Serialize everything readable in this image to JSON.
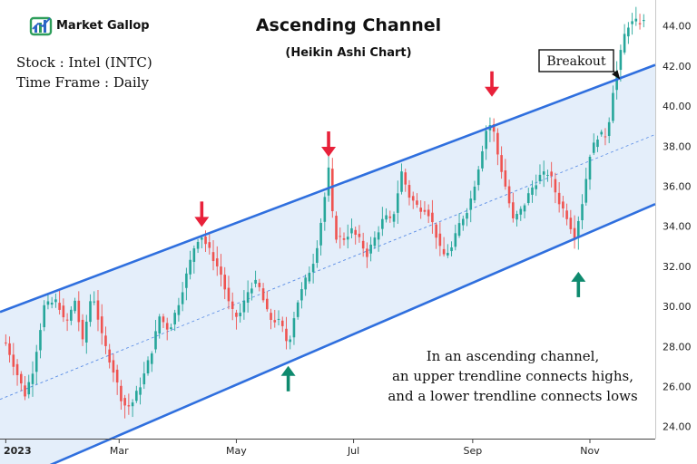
{
  "logo": {
    "text": "Market Gallop",
    "colors": {
      "green": "#2e9e5b",
      "blue": "#2b64c5",
      "text": "#1a2a5a"
    }
  },
  "header": {
    "title": "Ascending Channel",
    "subtitle": "(Heikin Ashi Chart)"
  },
  "info": {
    "stock": "Stock : Intel (INTC)",
    "timeframe": "Time Frame : Daily"
  },
  "annotations": {
    "breakout_label": "Breakout",
    "description": [
      "In an ascending channel,",
      "an upper trendline connects highs,",
      "and a lower trendline connects lows"
    ]
  },
  "colors": {
    "up": "#26a69a",
    "down": "#ef5350",
    "channel_line": "#2f6fde",
    "channel_fill": "#dbe8f8",
    "midline": "#5b8ee6",
    "arrow_down": "#e8213a",
    "arrow_up": "#0e8a6e"
  },
  "chart_data": {
    "type": "candlestick",
    "title": "Ascending Channel",
    "subtitle": "(Heikin Ashi Chart)",
    "ylim": [
      23.4,
      45.3
    ],
    "y_ticks": [
      "24.00",
      "26.00",
      "28.00",
      "30.00",
      "32.00",
      "34.00",
      "36.00",
      "38.00",
      "40.00",
      "42.00",
      "44.00"
    ],
    "x_tick_labels": [
      "2023",
      "Mar",
      "May",
      "Jul",
      "Sep",
      "Nov"
    ],
    "x_tick_days": [
      0,
      59,
      120,
      181,
      243,
      304
    ],
    "x_range_days": [
      -3,
      338
    ],
    "channel": {
      "upper": {
        "start": [
          -3,
          29.72
        ],
        "end": [
          322,
          41.48
        ]
      },
      "lower": {
        "start": [
          -3,
          21.0
        ],
        "end": [
          322,
          34.45
        ]
      }
    },
    "price_path": [
      [
        0,
        28.2
      ],
      [
        6,
        26.6
      ],
      [
        10,
        25.6
      ],
      [
        14,
        26.8
      ],
      [
        20,
        30.0
      ],
      [
        27,
        30.3
      ],
      [
        31,
        29.0
      ],
      [
        36,
        30.3
      ],
      [
        40,
        28.2
      ],
      [
        45,
        30.8
      ],
      [
        50,
        28.5
      ],
      [
        56,
        26.8
      ],
      [
        61,
        25.1
      ],
      [
        65,
        25.0
      ],
      [
        71,
        26.3
      ],
      [
        76,
        27.8
      ],
      [
        80,
        29.5
      ],
      [
        85,
        28.8
      ],
      [
        90,
        30.2
      ],
      [
        95,
        31.9
      ],
      [
        99,
        33.3
      ],
      [
        102,
        33.5
      ],
      [
        107,
        32.6
      ],
      [
        112,
        31.6
      ],
      [
        117,
        29.8
      ],
      [
        121,
        29.4
      ],
      [
        127,
        31.0
      ],
      [
        131,
        31.2
      ],
      [
        137,
        29.4
      ],
      [
        143,
        29.2
      ],
      [
        147,
        28.0
      ],
      [
        151,
        30.0
      ],
      [
        156,
        31.3
      ],
      [
        161,
        32.5
      ],
      [
        165,
        34.8
      ],
      [
        168,
        36.8
      ],
      [
        171,
        33.5
      ],
      [
        176,
        33.4
      ],
      [
        180,
        33.8
      ],
      [
        184,
        33.3
      ],
      [
        188,
        32.6
      ],
      [
        193,
        33.6
      ],
      [
        197,
        34.5
      ],
      [
        201,
        34.2
      ],
      [
        206,
        36.7
      ],
      [
        210,
        35.5
      ],
      [
        215,
        34.9
      ],
      [
        219,
        34.9
      ],
      [
        223,
        33.9
      ],
      [
        227,
        32.5
      ],
      [
        232,
        32.9
      ],
      [
        236,
        34.1
      ],
      [
        241,
        35.0
      ],
      [
        245,
        36.5
      ],
      [
        250,
        38.8
      ],
      [
        253,
        39.2
      ],
      [
        256,
        37.6
      ],
      [
        260,
        36.0
      ],
      [
        264,
        34.3
      ],
      [
        269,
        34.9
      ],
      [
        273,
        35.8
      ],
      [
        278,
        36.5
      ],
      [
        283,
        36.7
      ],
      [
        287,
        35.4
      ],
      [
        292,
        34.5
      ],
      [
        296,
        33.5
      ],
      [
        300,
        35.2
      ],
      [
        304,
        37.6
      ],
      [
        308,
        38.5
      ],
      [
        313,
        38.6
      ],
      [
        316,
        40.8
      ],
      [
        319,
        42.2
      ],
      [
        323,
        44.0
      ],
      [
        327,
        44.2
      ],
      [
        332,
        44.2
      ]
    ],
    "candles_generated_from_path": true,
    "breakout_point": [
      320,
      41.3
    ],
    "arrows": [
      {
        "type": "down",
        "day": 102,
        "value": 33.7
      },
      {
        "type": "down",
        "day": 168,
        "value": 37.2
      },
      {
        "type": "down",
        "day": 253,
        "value": 40.2
      },
      {
        "type": "up",
        "day": 147,
        "value": 27.3
      },
      {
        "type": "up",
        "day": 298,
        "value": 32.0
      }
    ],
    "grid": false,
    "legend": "none"
  }
}
